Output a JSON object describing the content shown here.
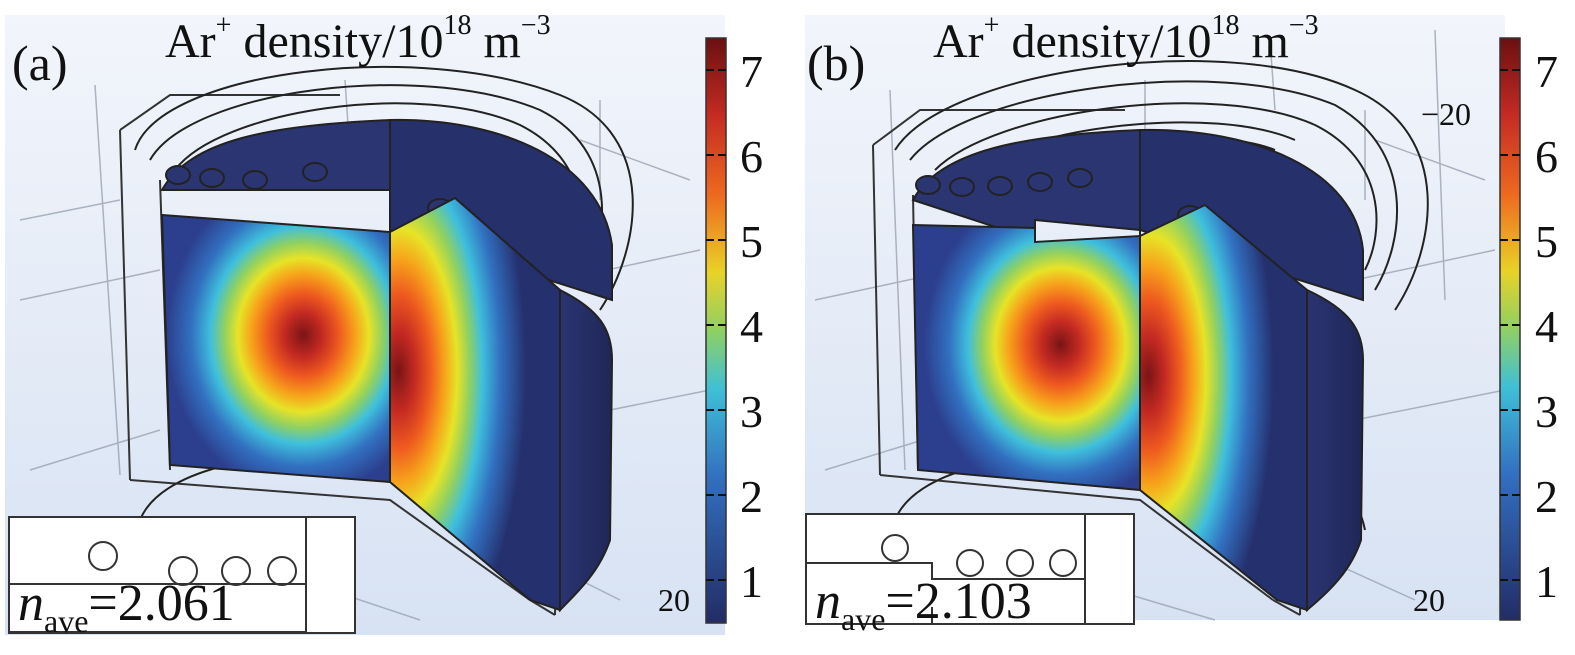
{
  "panels": [
    {
      "id": "a",
      "label": "(a)",
      "title_main": "Ar",
      "title_sup": "+",
      "title_rest": " density/10",
      "title_exp": "18",
      "title_unit": " m",
      "title_unit_exp": "−3",
      "axis_labels": [
        "20"
      ],
      "nave_symbol": "n",
      "nave_sub": "ave",
      "nave_value": "=2.061"
    },
    {
      "id": "b",
      "label": "(b)",
      "title_main": "Ar",
      "title_sup": "+",
      "title_rest": " density/10",
      "title_exp": "18",
      "title_unit": " m",
      "title_unit_exp": "−3",
      "axis_labels": [
        "−20",
        "20"
      ],
      "nave_symbol": "n",
      "nave_sub": "ave",
      "nave_value": "=2.103"
    }
  ],
  "colorbar": {
    "ticks": [
      "7",
      "6",
      "5",
      "4",
      "3",
      "2",
      "1"
    ],
    "colors": [
      "#7a1416",
      "#c42a22",
      "#ee5a1f",
      "#f7a21b",
      "#e7e327",
      "#8fd063",
      "#3fbfdd",
      "#3270c0",
      "#25306e"
    ]
  }
}
